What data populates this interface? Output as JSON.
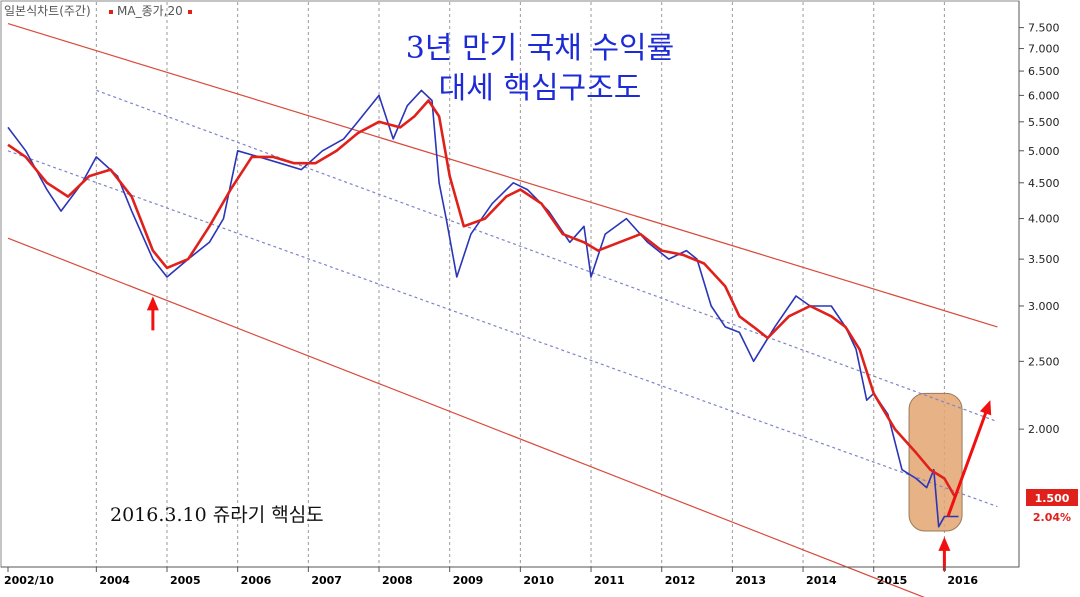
{
  "legend": {
    "chart_label": "일본식차트(주간)",
    "ma_label": "MA_종가,20"
  },
  "title": {
    "line1": "3년 만기 국채 수익률",
    "line2": "대세 핵심구조도"
  },
  "note": "2016.3.10 쥬라기 핵심도",
  "price_tag": "1.500",
  "change_pct": "2.04%",
  "colors": {
    "price": "#2a35b8",
    "ma": "#e0201b",
    "channel": "#d94a3c",
    "dotted": "#7e84c8",
    "highlight": "#e2a571",
    "arrow": "#f01010"
  },
  "chart_data": {
    "type": "line",
    "title": "3년 만기 국채 수익률",
    "subtitle": "대세 핵심구조도",
    "y_scale": "log",
    "ylim": [
      1.3,
      8.0
    ],
    "y_ticks": [
      "7.500",
      "7.000",
      "6.500",
      "6.000",
      "5.500",
      "5.000",
      "4.500",
      "4.000",
      "3.500",
      "3.000",
      "2.500",
      "2.000"
    ],
    "x_ticks": [
      "2002/10",
      "2004",
      "2005",
      "2006",
      "2007",
      "2008",
      "2009",
      "2010",
      "2011",
      "2012",
      "2013",
      "2014",
      "2015",
      "2016"
    ],
    "series": [
      {
        "name": "일본식차트(주간)",
        "x": [
          2002.75,
          2003.0,
          2003.3,
          2003.5,
          2003.8,
          2004.0,
          2004.3,
          2004.5,
          2004.8,
          2005.0,
          2005.3,
          2005.6,
          2005.8,
          2006.0,
          2006.3,
          2006.6,
          2006.9,
          2007.2,
          2007.5,
          2007.7,
          2008.0,
          2008.2,
          2008.4,
          2008.6,
          2008.75,
          2008.85,
          2008.95,
          2009.1,
          2009.3,
          2009.6,
          2009.9,
          2010.1,
          2010.4,
          2010.7,
          2010.9,
          2011.0,
          2011.2,
          2011.5,
          2011.8,
          2012.1,
          2012.35,
          2012.5,
          2012.7,
          2012.9,
          2013.1,
          2013.3,
          2013.6,
          2013.9,
          2014.1,
          2014.4,
          2014.6,
          2014.75,
          2014.9,
          2015.0,
          2015.2,
          2015.4,
          2015.6,
          2015.75,
          2015.85,
          2015.92,
          2016.0,
          2016.1,
          2016.2
        ],
        "values": [
          5.4,
          5.0,
          4.4,
          4.1,
          4.5,
          4.9,
          4.6,
          4.1,
          3.5,
          3.3,
          3.5,
          3.7,
          4.0,
          5.0,
          4.9,
          4.8,
          4.7,
          5.0,
          5.2,
          5.5,
          6.0,
          5.2,
          5.8,
          6.1,
          5.9,
          4.5,
          4.0,
          3.3,
          3.8,
          4.2,
          4.5,
          4.4,
          4.1,
          3.7,
          3.9,
          3.3,
          3.8,
          4.0,
          3.7,
          3.5,
          3.6,
          3.5,
          3.0,
          2.8,
          2.75,
          2.5,
          2.8,
          3.1,
          3.0,
          3.0,
          2.8,
          2.6,
          2.2,
          2.25,
          2.1,
          1.75,
          1.7,
          1.65,
          1.75,
          1.45,
          1.5,
          1.5,
          1.5
        ]
      },
      {
        "name": "MA_종가,20",
        "x": [
          2002.75,
          2003.0,
          2003.3,
          2003.6,
          2003.9,
          2004.2,
          2004.5,
          2004.8,
          2005.0,
          2005.3,
          2005.6,
          2005.9,
          2006.2,
          2006.5,
          2006.8,
          2007.1,
          2007.4,
          2007.7,
          2008.0,
          2008.3,
          2008.5,
          2008.7,
          2008.85,
          2009.0,
          2009.2,
          2009.5,
          2009.8,
          2010.0,
          2010.3,
          2010.6,
          2010.9,
          2011.1,
          2011.4,
          2011.7,
          2012.0,
          2012.3,
          2012.6,
          2012.9,
          2013.1,
          2013.3,
          2013.5,
          2013.8,
          2014.1,
          2014.4,
          2014.6,
          2014.8,
          2015.0,
          2015.3,
          2015.6,
          2015.8,
          2016.0,
          2016.15
        ],
        "values": [
          5.1,
          4.9,
          4.5,
          4.3,
          4.6,
          4.7,
          4.3,
          3.6,
          3.4,
          3.5,
          3.9,
          4.4,
          4.9,
          4.9,
          4.8,
          4.8,
          5.0,
          5.3,
          5.5,
          5.4,
          5.6,
          5.9,
          5.6,
          4.6,
          3.9,
          4.0,
          4.3,
          4.4,
          4.2,
          3.8,
          3.7,
          3.6,
          3.7,
          3.8,
          3.6,
          3.55,
          3.45,
          3.2,
          2.9,
          2.8,
          2.7,
          2.9,
          3.0,
          2.9,
          2.8,
          2.6,
          2.25,
          2.0,
          1.85,
          1.75,
          1.7,
          1.6
        ]
      }
    ],
    "channel_lines": [
      {
        "style": "solid",
        "x": [
          2002.75,
          2016.75
        ],
        "values": [
          7.6,
          2.8
        ]
      },
      {
        "style": "dotted",
        "x": [
          2004.0,
          2016.75
        ],
        "values": [
          6.1,
          2.05
        ]
      },
      {
        "style": "dotted",
        "x": [
          2002.75,
          2016.75
        ],
        "values": [
          5.0,
          1.55
        ]
      },
      {
        "style": "solid",
        "x": [
          2002.75,
          2016.0
        ],
        "values": [
          3.75,
          1.12
        ]
      }
    ],
    "annotations": [
      {
        "type": "arrow-up",
        "x": 2004.8,
        "y": 3.2
      },
      {
        "type": "arrow-up",
        "x": 2016.0,
        "y": 1.45
      },
      {
        "type": "arrow-up-diagonal",
        "x": [
          2016.05,
          2016.65
        ],
        "values": [
          1.5,
          2.2
        ]
      },
      {
        "type": "highlight-box",
        "x": [
          2015.5,
          2016.25
        ],
        "values": [
          2.25,
          1.43
        ]
      }
    ]
  }
}
